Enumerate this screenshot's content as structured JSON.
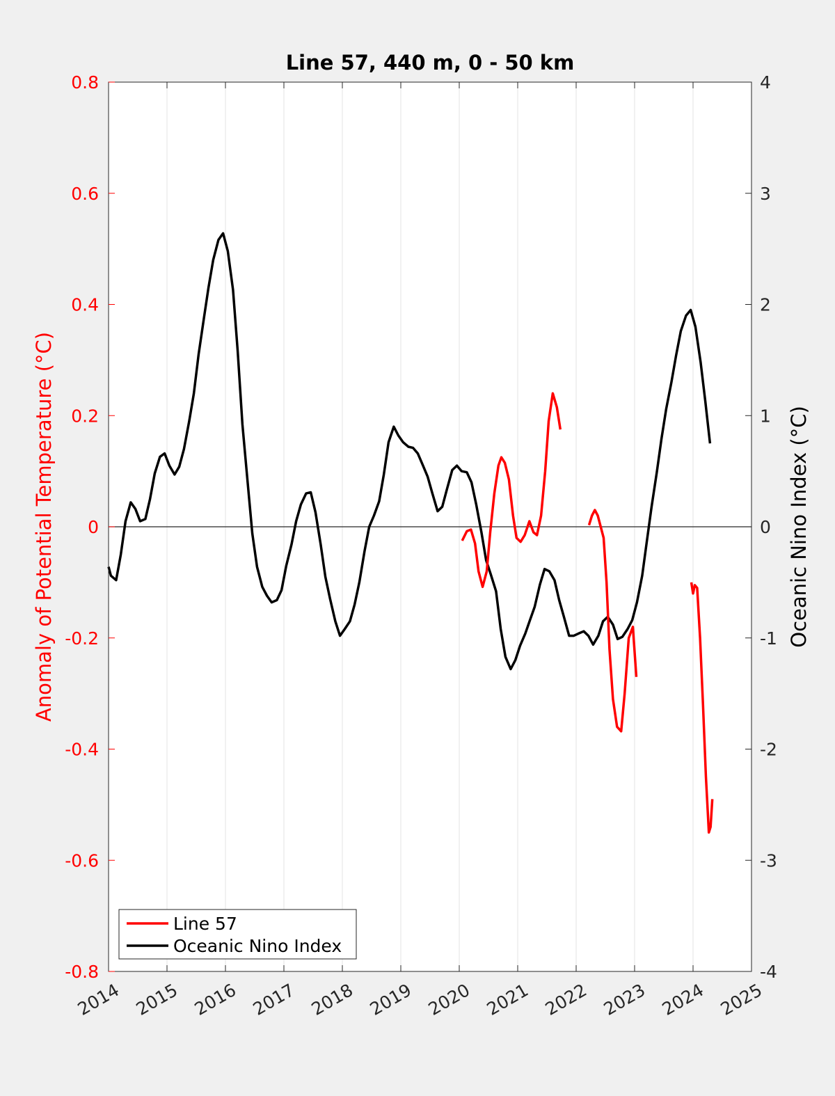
{
  "chart_data": {
    "type": "line",
    "title": "Line 57, 440 m, 0 - 50 km",
    "ylabel_left": "Anomaly of Potential Temperature (°C)",
    "ylabel_right": "Oceanic Nino Index (°C)",
    "xlim": [
      2014,
      2025
    ],
    "ylim_left": [
      -0.8,
      0.8
    ],
    "ylim_right": [
      -4,
      4
    ],
    "x_ticks": [
      "2014",
      "2015",
      "2016",
      "2017",
      "2018",
      "2019",
      "2020",
      "2021",
      "2022",
      "2023",
      "2024",
      "2025"
    ],
    "y_ticks_left": [
      "0.8",
      "0.6",
      "0.4",
      "0.2",
      "0",
      "-0.2",
      "-0.4",
      "-0.6",
      "-0.8"
    ],
    "y_ticks_right": [
      "4",
      "3",
      "2",
      "1",
      "0",
      "-1",
      "-2",
      "-3",
      "-4"
    ],
    "grid": "vertical",
    "zero_line": true,
    "colors": {
      "line57": "#ff0000",
      "oni": "#000000",
      "left_axis": "#ff0000",
      "right_axis": "#000000"
    },
    "legend": {
      "placement": "bottom-left",
      "entries": [
        "Line 57",
        "Oceanic Nino Index"
      ]
    },
    "series": [
      {
        "name": "Line 57",
        "axis": "left",
        "color": "#ff0000",
        "segments": [
          [
            [
              2020.05,
              -0.025
            ],
            [
              2020.13,
              -0.008
            ],
            [
              2020.2,
              -0.005
            ],
            [
              2020.27,
              -0.03
            ],
            [
              2020.33,
              -0.08
            ],
            [
              2020.4,
              -0.108
            ],
            [
              2020.47,
              -0.08
            ],
            [
              2020.53,
              -0.01
            ],
            [
              2020.6,
              0.06
            ],
            [
              2020.67,
              0.11
            ],
            [
              2020.72,
              0.125
            ],
            [
              2020.78,
              0.115
            ],
            [
              2020.85,
              0.085
            ],
            [
              2020.92,
              0.02
            ],
            [
              2020.98,
              -0.02
            ],
            [
              2021.05,
              -0.027
            ],
            [
              2021.12,
              -0.015
            ],
            [
              2021.2,
              0.01
            ],
            [
              2021.27,
              -0.01
            ],
            [
              2021.33,
              -0.015
            ],
            [
              2021.4,
              0.02
            ],
            [
              2021.47,
              0.1
            ],
            [
              2021.53,
              0.19
            ],
            [
              2021.6,
              0.24
            ],
            [
              2021.67,
              0.215
            ],
            [
              2021.73,
              0.175
            ]
          ],
          [
            [
              2022.22,
              0.003
            ],
            [
              2022.27,
              0.02
            ],
            [
              2022.32,
              0.03
            ],
            [
              2022.37,
              0.02
            ],
            [
              2022.42,
              0.0
            ],
            [
              2022.47,
              -0.02
            ],
            [
              2022.52,
              -0.1
            ],
            [
              2022.57,
              -0.22
            ],
            [
              2022.63,
              -0.31
            ],
            [
              2022.7,
              -0.36
            ],
            [
              2022.77,
              -0.368
            ],
            [
              2022.83,
              -0.3
            ],
            [
              2022.9,
              -0.2
            ],
            [
              2022.97,
              -0.18
            ],
            [
              2023.03,
              -0.27
            ]
          ],
          [
            [
              2023.97,
              -0.1
            ],
            [
              2024.0,
              -0.12
            ],
            [
              2024.03,
              -0.105
            ],
            [
              2024.07,
              -0.11
            ],
            [
              2024.12,
              -0.2
            ],
            [
              2024.17,
              -0.32
            ],
            [
              2024.22,
              -0.45
            ],
            [
              2024.27,
              -0.55
            ],
            [
              2024.3,
              -0.54
            ],
            [
              2024.33,
              -0.49
            ]
          ]
        ]
      },
      {
        "name": "Oceanic Nino Index",
        "axis": "right",
        "color": "#000000",
        "segments": [
          [
            [
              2014.0,
              -0.36
            ],
            [
              2014.04,
              -0.44
            ],
            [
              2014.13,
              -0.48
            ],
            [
              2014.21,
              -0.25
            ],
            [
              2014.29,
              0.05
            ],
            [
              2014.38,
              0.22
            ],
            [
              2014.46,
              0.16
            ],
            [
              2014.54,
              0.05
            ],
            [
              2014.63,
              0.07
            ],
            [
              2014.71,
              0.25
            ],
            [
              2014.79,
              0.48
            ],
            [
              2014.88,
              0.63
            ],
            [
              2014.96,
              0.66
            ],
            [
              2015.04,
              0.55
            ],
            [
              2015.13,
              0.47
            ],
            [
              2015.21,
              0.54
            ],
            [
              2015.29,
              0.7
            ],
            [
              2015.38,
              0.95
            ],
            [
              2015.46,
              1.2
            ],
            [
              2015.54,
              1.55
            ],
            [
              2015.63,
              1.87
            ],
            [
              2015.71,
              2.15
            ],
            [
              2015.79,
              2.4
            ],
            [
              2015.88,
              2.58
            ],
            [
              2015.96,
              2.64
            ],
            [
              2016.04,
              2.48
            ],
            [
              2016.13,
              2.13
            ],
            [
              2016.21,
              1.58
            ],
            [
              2016.29,
              0.92
            ],
            [
              2016.38,
              0.4
            ],
            [
              2016.46,
              -0.06
            ],
            [
              2016.54,
              -0.36
            ],
            [
              2016.63,
              -0.54
            ],
            [
              2016.71,
              -0.62
            ],
            [
              2016.79,
              -0.68
            ],
            [
              2016.88,
              -0.66
            ],
            [
              2016.96,
              -0.57
            ],
            [
              2017.04,
              -0.35
            ],
            [
              2017.13,
              -0.16
            ],
            [
              2017.21,
              0.05
            ],
            [
              2017.29,
              0.2
            ],
            [
              2017.38,
              0.3
            ],
            [
              2017.46,
              0.31
            ],
            [
              2017.54,
              0.13
            ],
            [
              2017.63,
              -0.16
            ],
            [
              2017.71,
              -0.45
            ],
            [
              2017.79,
              -0.65
            ],
            [
              2017.88,
              -0.85
            ],
            [
              2017.96,
              -0.98
            ],
            [
              2018.04,
              -0.92
            ],
            [
              2018.13,
              -0.85
            ],
            [
              2018.21,
              -0.7
            ],
            [
              2018.29,
              -0.5
            ],
            [
              2018.38,
              -0.22
            ],
            [
              2018.46,
              0.0
            ],
            [
              2018.54,
              0.1
            ],
            [
              2018.63,
              0.23
            ],
            [
              2018.71,
              0.47
            ],
            [
              2018.79,
              0.76
            ],
            [
              2018.88,
              0.9
            ],
            [
              2018.96,
              0.82
            ],
            [
              2019.04,
              0.76
            ],
            [
              2019.13,
              0.72
            ],
            [
              2019.21,
              0.71
            ],
            [
              2019.29,
              0.66
            ],
            [
              2019.38,
              0.55
            ],
            [
              2019.46,
              0.45
            ],
            [
              2019.54,
              0.3
            ],
            [
              2019.63,
              0.14
            ],
            [
              2019.71,
              0.18
            ],
            [
              2019.79,
              0.34
            ],
            [
              2019.88,
              0.51
            ],
            [
              2019.96,
              0.55
            ],
            [
              2020.04,
              0.5
            ],
            [
              2020.13,
              0.49
            ],
            [
              2020.21,
              0.4
            ],
            [
              2020.29,
              0.2
            ],
            [
              2020.38,
              -0.05
            ],
            [
              2020.46,
              -0.3
            ],
            [
              2020.54,
              -0.43
            ],
            [
              2020.63,
              -0.58
            ],
            [
              2020.71,
              -0.92
            ],
            [
              2020.79,
              -1.17
            ],
            [
              2020.88,
              -1.28
            ],
            [
              2020.96,
              -1.2
            ],
            [
              2021.04,
              -1.07
            ],
            [
              2021.13,
              -0.96
            ],
            [
              2021.21,
              -0.84
            ],
            [
              2021.29,
              -0.72
            ],
            [
              2021.38,
              -0.52
            ],
            [
              2021.46,
              -0.38
            ],
            [
              2021.54,
              -0.4
            ],
            [
              2021.63,
              -0.48
            ],
            [
              2021.71,
              -0.66
            ],
            [
              2021.79,
              -0.81
            ],
            [
              2021.88,
              -0.98
            ],
            [
              2021.96,
              -0.98
            ],
            [
              2022.04,
              -0.96
            ],
            [
              2022.13,
              -0.94
            ],
            [
              2022.21,
              -0.98
            ],
            [
              2022.29,
              -1.06
            ],
            [
              2022.38,
              -0.98
            ],
            [
              2022.46,
              -0.85
            ],
            [
              2022.54,
              -0.81
            ],
            [
              2022.63,
              -0.88
            ],
            [
              2022.71,
              -1.01
            ],
            [
              2022.79,
              -0.99
            ],
            [
              2022.88,
              -0.92
            ],
            [
              2022.96,
              -0.84
            ],
            [
              2023.04,
              -0.68
            ],
            [
              2023.13,
              -0.44
            ],
            [
              2023.21,
              -0.13
            ],
            [
              2023.29,
              0.18
            ],
            [
              2023.38,
              0.49
            ],
            [
              2023.46,
              0.79
            ],
            [
              2023.54,
              1.06
            ],
            [
              2023.63,
              1.3
            ],
            [
              2023.71,
              1.54
            ],
            [
              2023.79,
              1.76
            ],
            [
              2023.88,
              1.9
            ],
            [
              2023.96,
              1.95
            ],
            [
              2024.04,
              1.8
            ],
            [
              2024.13,
              1.48
            ],
            [
              2024.21,
              1.13
            ],
            [
              2024.29,
              0.75
            ]
          ]
        ]
      }
    ]
  }
}
